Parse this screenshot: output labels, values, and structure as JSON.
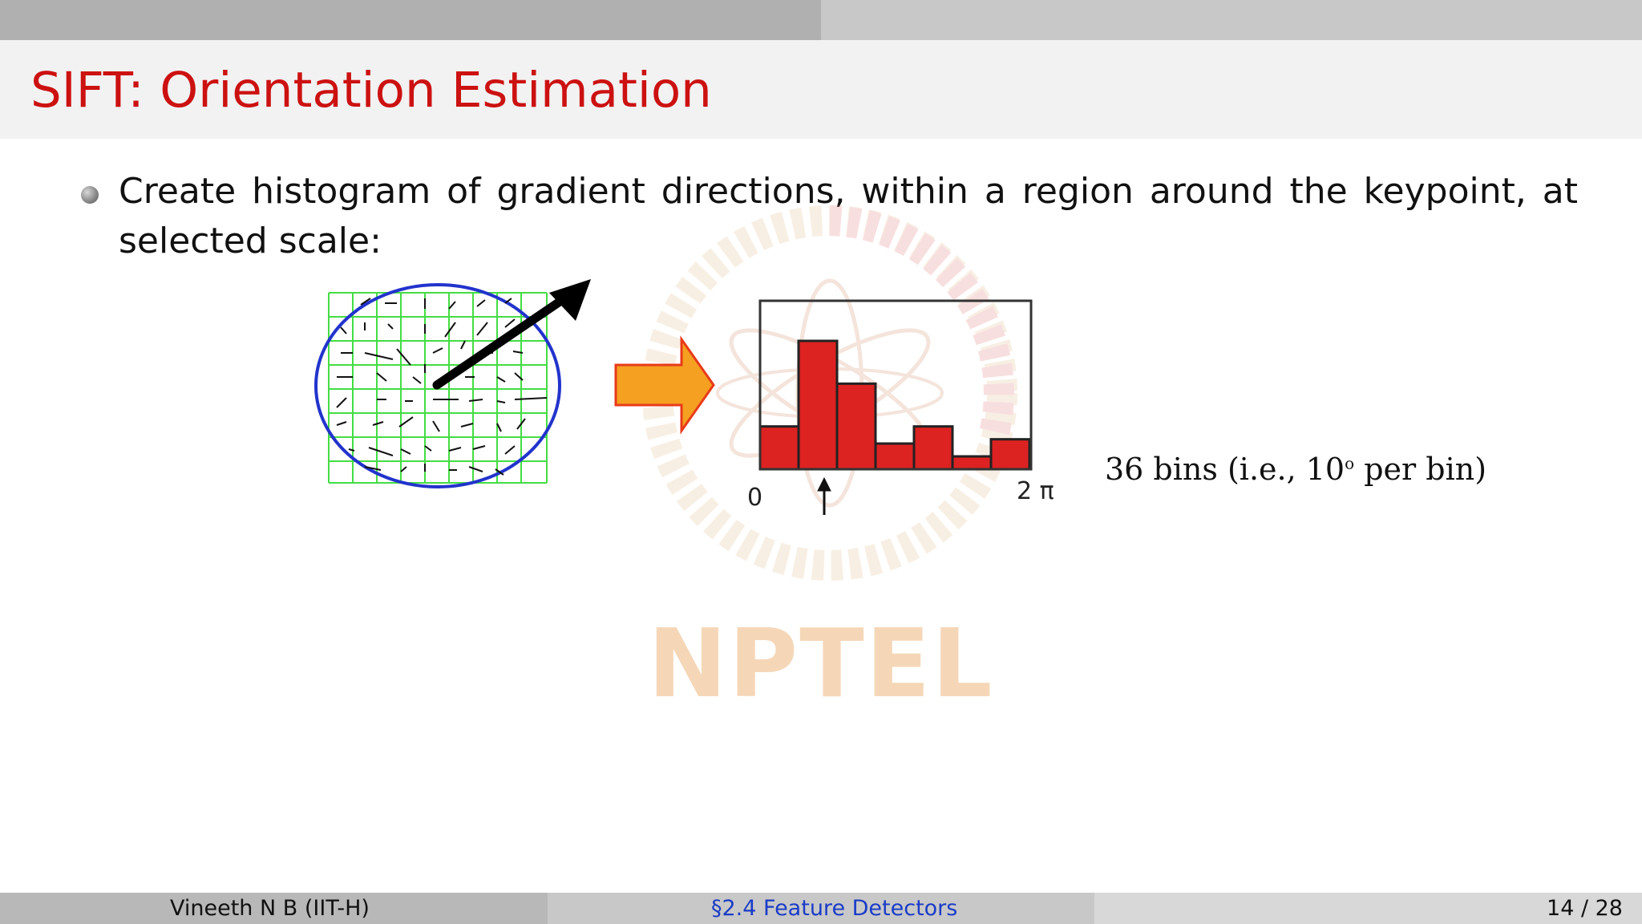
{
  "slide": {
    "title": "SIFT: Orientation Estimation",
    "bullet": "Create histogram of gradient directions, within a region around the keypoint, at selected scale:",
    "bins_label_prefix": "36 bins (i.e., 10",
    "bins_label_sup": "o",
    "bins_label_suffix": " per bin)",
    "axis_start": "0",
    "axis_end": "2 π",
    "watermark": "NPTEL"
  },
  "histogram": {
    "values": [
      1,
      3,
      2,
      0.6,
      1,
      0.3,
      0.7
    ],
    "peak_index": 1
  },
  "colors": {
    "title": "#cc1111",
    "bar": "#dd2222",
    "grid": "#44dd44",
    "ellipse": "#2233cc",
    "arrow": "#f5a020",
    "section_link": "#1a3cc8"
  },
  "footer": {
    "author": "Vineeth N B  (IIT-H)",
    "section": "§2.4 Feature Detectors",
    "page": "14 / 28"
  }
}
